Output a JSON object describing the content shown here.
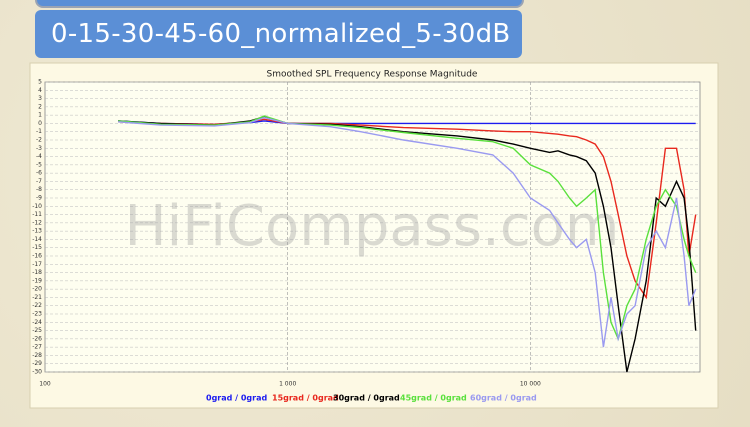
{
  "header": {
    "title": "0-15-30-45-60_normalized_5-30dB"
  },
  "watermark": "HiFiCompass.com",
  "chart_data": {
    "type": "line",
    "title": "Smoothed SPL Frequency Response Magnitude",
    "x": [
      200,
      300,
      500,
      700,
      800,
      1000,
      1500,
      2000,
      3000,
      5000,
      7000,
      8500,
      10000,
      12000,
      13000,
      14500,
      15500,
      17000,
      18500,
      20000,
      21500,
      23000,
      25000,
      27000,
      30000,
      33000,
      36000,
      40000,
      43000,
      45000,
      48000
    ],
    "series": [
      {
        "name": "0grad / 0grad",
        "color": "#1c1cf0",
        "values": [
          0.3,
          0,
          -0.1,
          0.1,
          0.3,
          0,
          0,
          0,
          0,
          0,
          0,
          0,
          0,
          0,
          0,
          0,
          0,
          0,
          0,
          0,
          0,
          0,
          0,
          0,
          0,
          0,
          0,
          0,
          0,
          0,
          0
        ]
      },
      {
        "name": "15grad / 0grad",
        "color": "#e8281e",
        "values": [
          0.2,
          0,
          -0.1,
          0.2,
          0.5,
          0,
          0,
          -0.2,
          -0.5,
          -0.7,
          -0.9,
          -1,
          -1,
          -1.2,
          -1.3,
          -1.5,
          -1.6,
          -2,
          -2.5,
          -4,
          -7,
          -11,
          -16,
          -19,
          -21,
          -12,
          -3,
          -3,
          -8,
          -16,
          -11
        ]
      },
      {
        "name": "30grad / 0grad",
        "color": "#000000",
        "values": [
          0.3,
          0,
          -0.2,
          0.3,
          0.8,
          0,
          -0.1,
          -0.4,
          -1,
          -1.5,
          -2,
          -2.5,
          -3,
          -3.5,
          -3.3,
          -3.8,
          -4,
          -4.5,
          -6,
          -10,
          -15,
          -22,
          -30,
          -26,
          -19,
          -9,
          -10,
          -7,
          -9,
          -14,
          -25
        ]
      },
      {
        "name": "45grad / 0grad",
        "color": "#5ae03c",
        "values": [
          0.3,
          -0.1,
          -0.2,
          0.2,
          0.9,
          0,
          -0.2,
          -0.5,
          -1.1,
          -1.8,
          -2.2,
          -3,
          -5,
          -6,
          -7,
          -9,
          -10,
          -9,
          -8,
          -18,
          -24,
          -26,
          -22,
          -20,
          -14,
          -10,
          -8,
          -10,
          -14,
          -16,
          -18
        ]
      },
      {
        "name": "60grad / 0grad",
        "color": "#9a9af0",
        "values": [
          0.2,
          -0.2,
          -0.3,
          0.1,
          0.7,
          0,
          -0.4,
          -1,
          -2,
          -3,
          -3.8,
          -6,
          -9,
          -10.5,
          -12,
          -14,
          -15,
          -14,
          -18,
          -27,
          -21,
          -26,
          -23,
          -22,
          -15,
          -13,
          -15,
          -9,
          -16,
          -22,
          -20
        ]
      }
    ],
    "xscale": "log",
    "xlim": [
      100,
      50000
    ],
    "xticks": [
      100,
      {
        "value": 1000,
        "label": "1 000"
      },
      {
        "value": 10000,
        "label": "10 000"
      }
    ],
    "ylim": [
      -30,
      5
    ],
    "yticks": [
      5,
      4,
      3,
      2,
      1,
      0,
      -1,
      -2,
      -3,
      -4,
      -5,
      -6,
      -7,
      -8,
      -9,
      -10,
      -11,
      -12,
      -13,
      -14,
      -15,
      -16,
      -17,
      -18,
      -19,
      -20,
      -21,
      -22,
      -23,
      -24,
      -25,
      -26,
      -27,
      -28,
      -29,
      -30
    ],
    "grid": true
  }
}
